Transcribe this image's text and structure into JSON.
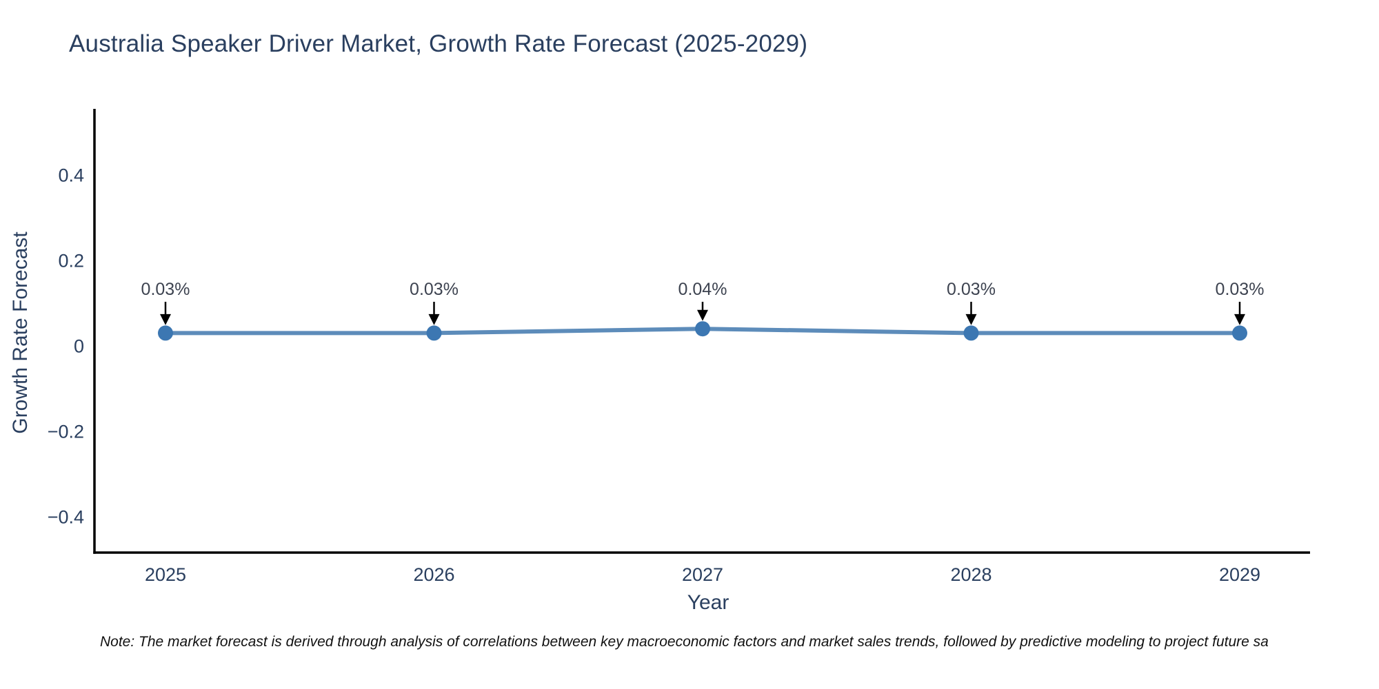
{
  "chart": {
    "note": "Note: The market forecast is derived through analysis of correlations between key macroeconomic factors and market sales trends, followed by predictive modeling to project future sa",
    "colors": {
      "title_text": "#2a3f5f",
      "axis_text": "#2a3f5f",
      "axis_line": "#000000",
      "series_line": "#5d8cba",
      "marker_fill": "#3c77b2",
      "annotation_text": "#3d4350",
      "annotation_arrow": "#000000",
      "note_text": "#111111",
      "background": "#ffffff"
    }
  },
  "chart_data": {
    "type": "line",
    "title": "Australia Speaker Driver Market, Growth Rate Forecast (2025-2029)",
    "xlabel": "Year",
    "ylabel": "Growth Rate Forecast",
    "x": [
      2025,
      2026,
      2027,
      2028,
      2029
    ],
    "xtick_labels": [
      "2025",
      "2026",
      "2027",
      "2028",
      "2029"
    ],
    "series": [
      {
        "name": "Growth Rate Forecast",
        "values": [
          0.03,
          0.03,
          0.04,
          0.03,
          0.03
        ]
      }
    ],
    "point_labels": [
      "0.03%",
      "0.03%",
      "0.04%",
      "0.03%",
      "0.03%"
    ],
    "yticks": [
      0.4,
      0.2,
      0,
      -0.2,
      -0.4
    ],
    "ytick_labels": [
      "0.4",
      "0.2",
      "0",
      "−0.2",
      "−0.4"
    ],
    "ylim": [
      -0.48,
      0.55
    ],
    "grid": false,
    "legend": "none",
    "markers": true,
    "annotation_arrows": true
  }
}
